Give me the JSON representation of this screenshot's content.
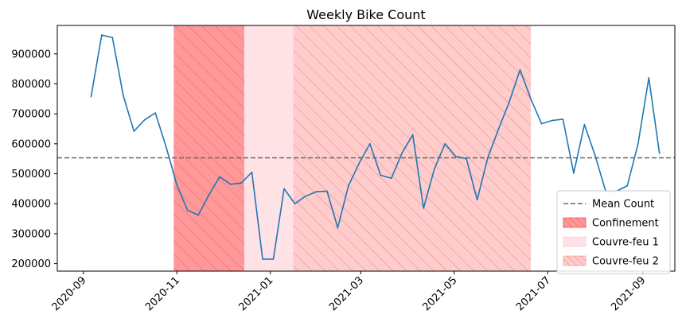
{
  "chart_data": {
    "type": "line",
    "title": "Weekly Bike Count",
    "xlabel": "",
    "ylabel": "",
    "x_axis": {
      "type": "date",
      "range": [
        "2020-08-15",
        "2021-09-22"
      ],
      "ticks": [
        "2020-09-01",
        "2020-11-01",
        "2021-01-01",
        "2021-03-01",
        "2021-05-01",
        "2021-07-01",
        "2021-09-01"
      ],
      "tick_labels": [
        "2020-09",
        "2020-11",
        "2021-01",
        "2021-03",
        "2021-05",
        "2021-07",
        "2021-09"
      ],
      "tick_rotation": 45
    },
    "y_axis": {
      "range": [
        175000,
        995000
      ],
      "ticks": [
        200000,
        300000,
        400000,
        500000,
        600000,
        700000,
        800000,
        900000
      ],
      "tick_labels": [
        "200000",
        "300000",
        "400000",
        "500000",
        "600000",
        "700000",
        "800000",
        "900000"
      ]
    },
    "grid": false,
    "series": [
      {
        "color": "#1f77b4",
        "points": [
          [
            "2020-09-06",
            757000
          ],
          [
            "2020-09-13",
            963000
          ],
          [
            "2020-09-20",
            955000
          ],
          [
            "2020-09-27",
            762000
          ],
          [
            "2020-10-04",
            642000
          ],
          [
            "2020-10-11",
            680000
          ],
          [
            "2020-10-18",
            703000
          ],
          [
            "2020-10-25",
            590000
          ],
          [
            "2020-11-01",
            463000
          ],
          [
            "2020-11-08",
            378000
          ],
          [
            "2020-11-15",
            362000
          ],
          [
            "2020-11-22",
            430000
          ],
          [
            "2020-11-29",
            490000
          ],
          [
            "2020-12-06",
            465000
          ],
          [
            "2020-12-13",
            469000
          ],
          [
            "2020-12-20",
            505000
          ],
          [
            "2020-12-27",
            215000
          ],
          [
            "2021-01-03",
            215000
          ],
          [
            "2021-01-10",
            450000
          ],
          [
            "2021-01-17",
            400000
          ],
          [
            "2021-01-24",
            425000
          ],
          [
            "2021-01-31",
            440000
          ],
          [
            "2021-02-07",
            442000
          ],
          [
            "2021-02-14",
            320000
          ],
          [
            "2021-02-21",
            460000
          ],
          [
            "2021-02-28",
            535000
          ],
          [
            "2021-03-07",
            600000
          ],
          [
            "2021-03-14",
            495000
          ],
          [
            "2021-03-21",
            485000
          ],
          [
            "2021-03-28",
            570000
          ],
          [
            "2021-04-04",
            630000
          ],
          [
            "2021-04-11",
            385000
          ],
          [
            "2021-04-18",
            515000
          ],
          [
            "2021-04-25",
            600000
          ],
          [
            "2021-05-02",
            558000
          ],
          [
            "2021-05-09",
            550000
          ],
          [
            "2021-05-16",
            413000
          ],
          [
            "2021-05-23",
            555000
          ],
          [
            "2021-05-30",
            650000
          ],
          [
            "2021-06-06",
            740000
          ],
          [
            "2021-06-13",
            847000
          ],
          [
            "2021-06-20",
            750000
          ],
          [
            "2021-06-27",
            667000
          ],
          [
            "2021-07-04",
            678000
          ],
          [
            "2021-07-11",
            682000
          ],
          [
            "2021-07-18",
            502000
          ],
          [
            "2021-07-25",
            664000
          ],
          [
            "2021-08-01",
            560000
          ],
          [
            "2021-08-08",
            440000
          ],
          [
            "2021-08-15",
            442000
          ],
          [
            "2021-08-22",
            460000
          ],
          [
            "2021-08-29",
            600000
          ],
          [
            "2021-09-05",
            820000
          ],
          [
            "2021-09-12",
            568000
          ]
        ]
      }
    ],
    "mean_line": {
      "value": 553000,
      "color": "#666666",
      "style": "dashed"
    },
    "shaded_periods": [
      {
        "start": "2020-10-30",
        "end": "2020-12-15",
        "color": "#ff0000",
        "opacity": 0.4,
        "hatch": true
      },
      {
        "start": "2020-12-15",
        "end": "2021-01-16",
        "color": "#ffb6c1",
        "opacity": 0.4,
        "hatch": false
      },
      {
        "start": "2021-01-16",
        "end": "2021-06-20",
        "color": "#ff7f7f",
        "opacity": 0.4,
        "hatch": true
      }
    ],
    "legend": {
      "placement": "lower-right",
      "entries": [
        {
          "label": "Mean Count",
          "kind": "line",
          "color": "#666666"
        },
        {
          "label": "Confinement",
          "kind": "patch",
          "color": "#ff0000",
          "opacity": 0.4,
          "hatch": true
        },
        {
          "label": "Couvre-feu 1",
          "kind": "patch",
          "color": "#ffb6c1",
          "opacity": 0.4,
          "hatch": false
        },
        {
          "label": "Couvre-feu 2",
          "kind": "patch",
          "color": "#ff7f7f",
          "opacity": 0.4,
          "hatch": true
        }
      ]
    }
  }
}
